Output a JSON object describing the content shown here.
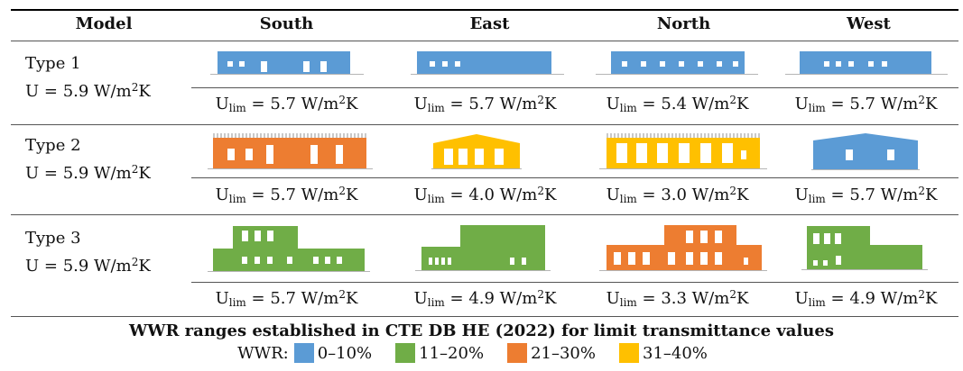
{
  "header": {
    "model": "Model",
    "columns": [
      "South",
      "East",
      "North",
      "West"
    ]
  },
  "rows": [
    {
      "type": "Type 1",
      "u_label": "U = 5.9 W/m",
      "u_sup": "2",
      "u_tail": "K",
      "ulim": [
        {
          "base": "U",
          "sub": "lim",
          "value": " = 5.7 W/m",
          "sup": "2",
          "tail": "K"
        },
        {
          "base": "U",
          "sub": "lim",
          "value": " = 5.7 W/m",
          "sup": "2",
          "tail": "K"
        },
        {
          "base": "U",
          "sub": "lim",
          "value": " = 5.4 W/m",
          "sup": "2",
          "tail": "K"
        },
        {
          "base": "U",
          "sub": "lim",
          "value": " = 5.7 W/m",
          "sup": "2",
          "tail": "K"
        }
      ],
      "facade_colors": [
        "#5b9bd5",
        "#5b9bd5",
        "#5b9bd5",
        "#5b9bd5"
      ]
    },
    {
      "type": "Type 2",
      "u_label": "U = 5.9 W/m",
      "u_sup": "2",
      "u_tail": "K",
      "ulim": [
        {
          "base": "U",
          "sub": "lim",
          "value": " = 5.7 W/m",
          "sup": "2",
          "tail": "K"
        },
        {
          "base": "U",
          "sub": "lim",
          "value": " = 4.0 W/m",
          "sup": "2",
          "tail": "K"
        },
        {
          "base": "U",
          "sub": "lim",
          "value": " = 3.0 W/m",
          "sup": "2",
          "tail": "K"
        },
        {
          "base": "U",
          "sub": "lim",
          "value": " = 5.7 W/m",
          "sup": "2",
          "tail": "K"
        }
      ],
      "facade_colors": [
        "#ed7d31",
        "#ffc000",
        "#ffc000",
        "#5b9bd5"
      ]
    },
    {
      "type": "Type 3",
      "u_label": "U = 5.9 W/m",
      "u_sup": "2",
      "u_tail": "K",
      "ulim": [
        {
          "base": "U",
          "sub": "lim",
          "value": " = 5.7 W/m",
          "sup": "2",
          "tail": "K"
        },
        {
          "base": "U",
          "sub": "lim",
          "value": " = 4.9 W/m",
          "sup": "2",
          "tail": "K"
        },
        {
          "base": "U",
          "sub": "lim",
          "value": " = 3.3 W/m",
          "sup": "2",
          "tail": "K"
        },
        {
          "base": "U",
          "sub": "lim",
          "value": " = 4.9 W/m",
          "sup": "2",
          "tail": "K"
        }
      ],
      "facade_colors": [
        "#70ad47",
        "#70ad47",
        "#ed7d31",
        "#70ad47"
      ]
    }
  ],
  "footer": {
    "caption": "WWR ranges established in CTE DB HE (2022) for limit transmittance values",
    "legend_label": "WWR:",
    "legend": [
      {
        "label": "0–10%",
        "color": "#5b9bd5"
      },
      {
        "label": "11–20%",
        "color": "#70ad47"
      },
      {
        "label": "21–30%",
        "color": "#ed7d31"
      },
      {
        "label": "31–40%",
        "color": "#ffc000"
      }
    ]
  }
}
